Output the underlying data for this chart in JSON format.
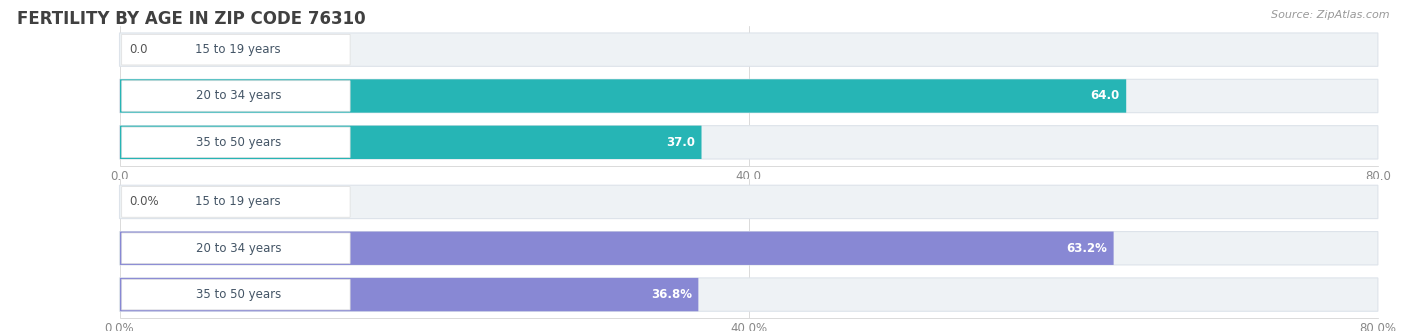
{
  "title": "FERTILITY BY AGE IN ZIP CODE 76310",
  "source": "Source: ZipAtlas.com",
  "top_chart": {
    "categories": [
      "15 to 19 years",
      "20 to 34 years",
      "35 to 50 years"
    ],
    "values": [
      0.0,
      64.0,
      37.0
    ],
    "bar_color_dark": "#26b5b5",
    "bar_color_light": "#8dd8d8",
    "track_color": "#eef2f5",
    "track_edge_color": "#dde3ea",
    "xlim": [
      0,
      80
    ],
    "xticks": [
      0.0,
      40.0,
      80.0
    ],
    "xtick_labels": [
      "0.0",
      "40.0",
      "80.0"
    ]
  },
  "bottom_chart": {
    "categories": [
      "15 to 19 years",
      "20 to 34 years",
      "35 to 50 years"
    ],
    "values": [
      0.0,
      63.2,
      36.8
    ],
    "bar_color_dark": "#8888d4",
    "bar_color_light": "#aaaadd",
    "track_color": "#eef2f5",
    "track_edge_color": "#dde3ea",
    "xlim": [
      0,
      80
    ],
    "xticks": [
      0.0,
      40.0,
      80.0
    ],
    "xtick_labels": [
      "0.0%",
      "40.0%",
      "80.0%"
    ]
  },
  "label_white_color": "#ffffff",
  "label_dark_color": "#555555",
  "category_label_color": "#445566",
  "label_box_color": "#ffffff",
  "label_box_edge": "#dddddd",
  "background_color": "#ffffff",
  "title_color": "#404040",
  "title_fontsize": 12,
  "source_fontsize": 8,
  "tick_fontsize": 8.5,
  "category_fontsize": 8.5,
  "value_fontsize": 8.5
}
